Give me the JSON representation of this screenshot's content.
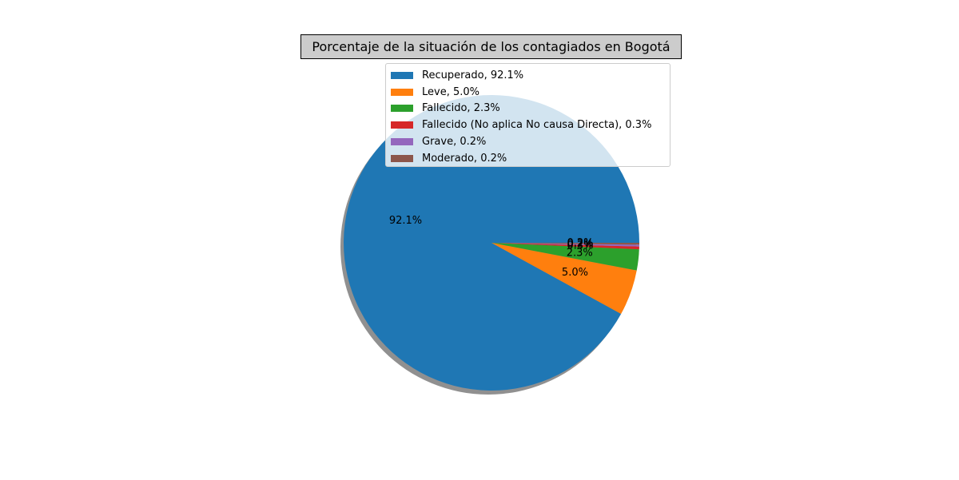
{
  "chart_data": {
    "type": "pie",
    "title": "Porcentaje de la situación de los contagiados en Bogotá",
    "shadow": true,
    "legend_position": "top-center",
    "slices": [
      {
        "label": "Recuperado",
        "value": 92.1,
        "pct_label": "92.1%",
        "legend": "Recuperado, 92.1%",
        "color": "#1f77b4"
      },
      {
        "label": "Leve",
        "value": 5.0,
        "pct_label": "5.0%",
        "legend": "Leve, 5.0%",
        "color": "#ff7f0e"
      },
      {
        "label": "Fallecido",
        "value": 2.3,
        "pct_label": "2.3%",
        "legend": "Fallecido, 2.3%",
        "color": "#2ca02c"
      },
      {
        "label": "Fallecido (No aplica No causa Directa)",
        "value": 0.3,
        "pct_label": "0.3%",
        "legend": "Fallecido (No aplica No causa Directa), 0.3%",
        "color": "#d62728"
      },
      {
        "label": "Grave",
        "value": 0.2,
        "pct_label": "0.2%",
        "legend": "Grave, 0.2%",
        "color": "#9467bd"
      },
      {
        "label": "Moderado",
        "value": 0.2,
        "pct_label": "0.2%",
        "legend": "Moderado, 0.2%",
        "color": "#8c564b"
      }
    ]
  }
}
